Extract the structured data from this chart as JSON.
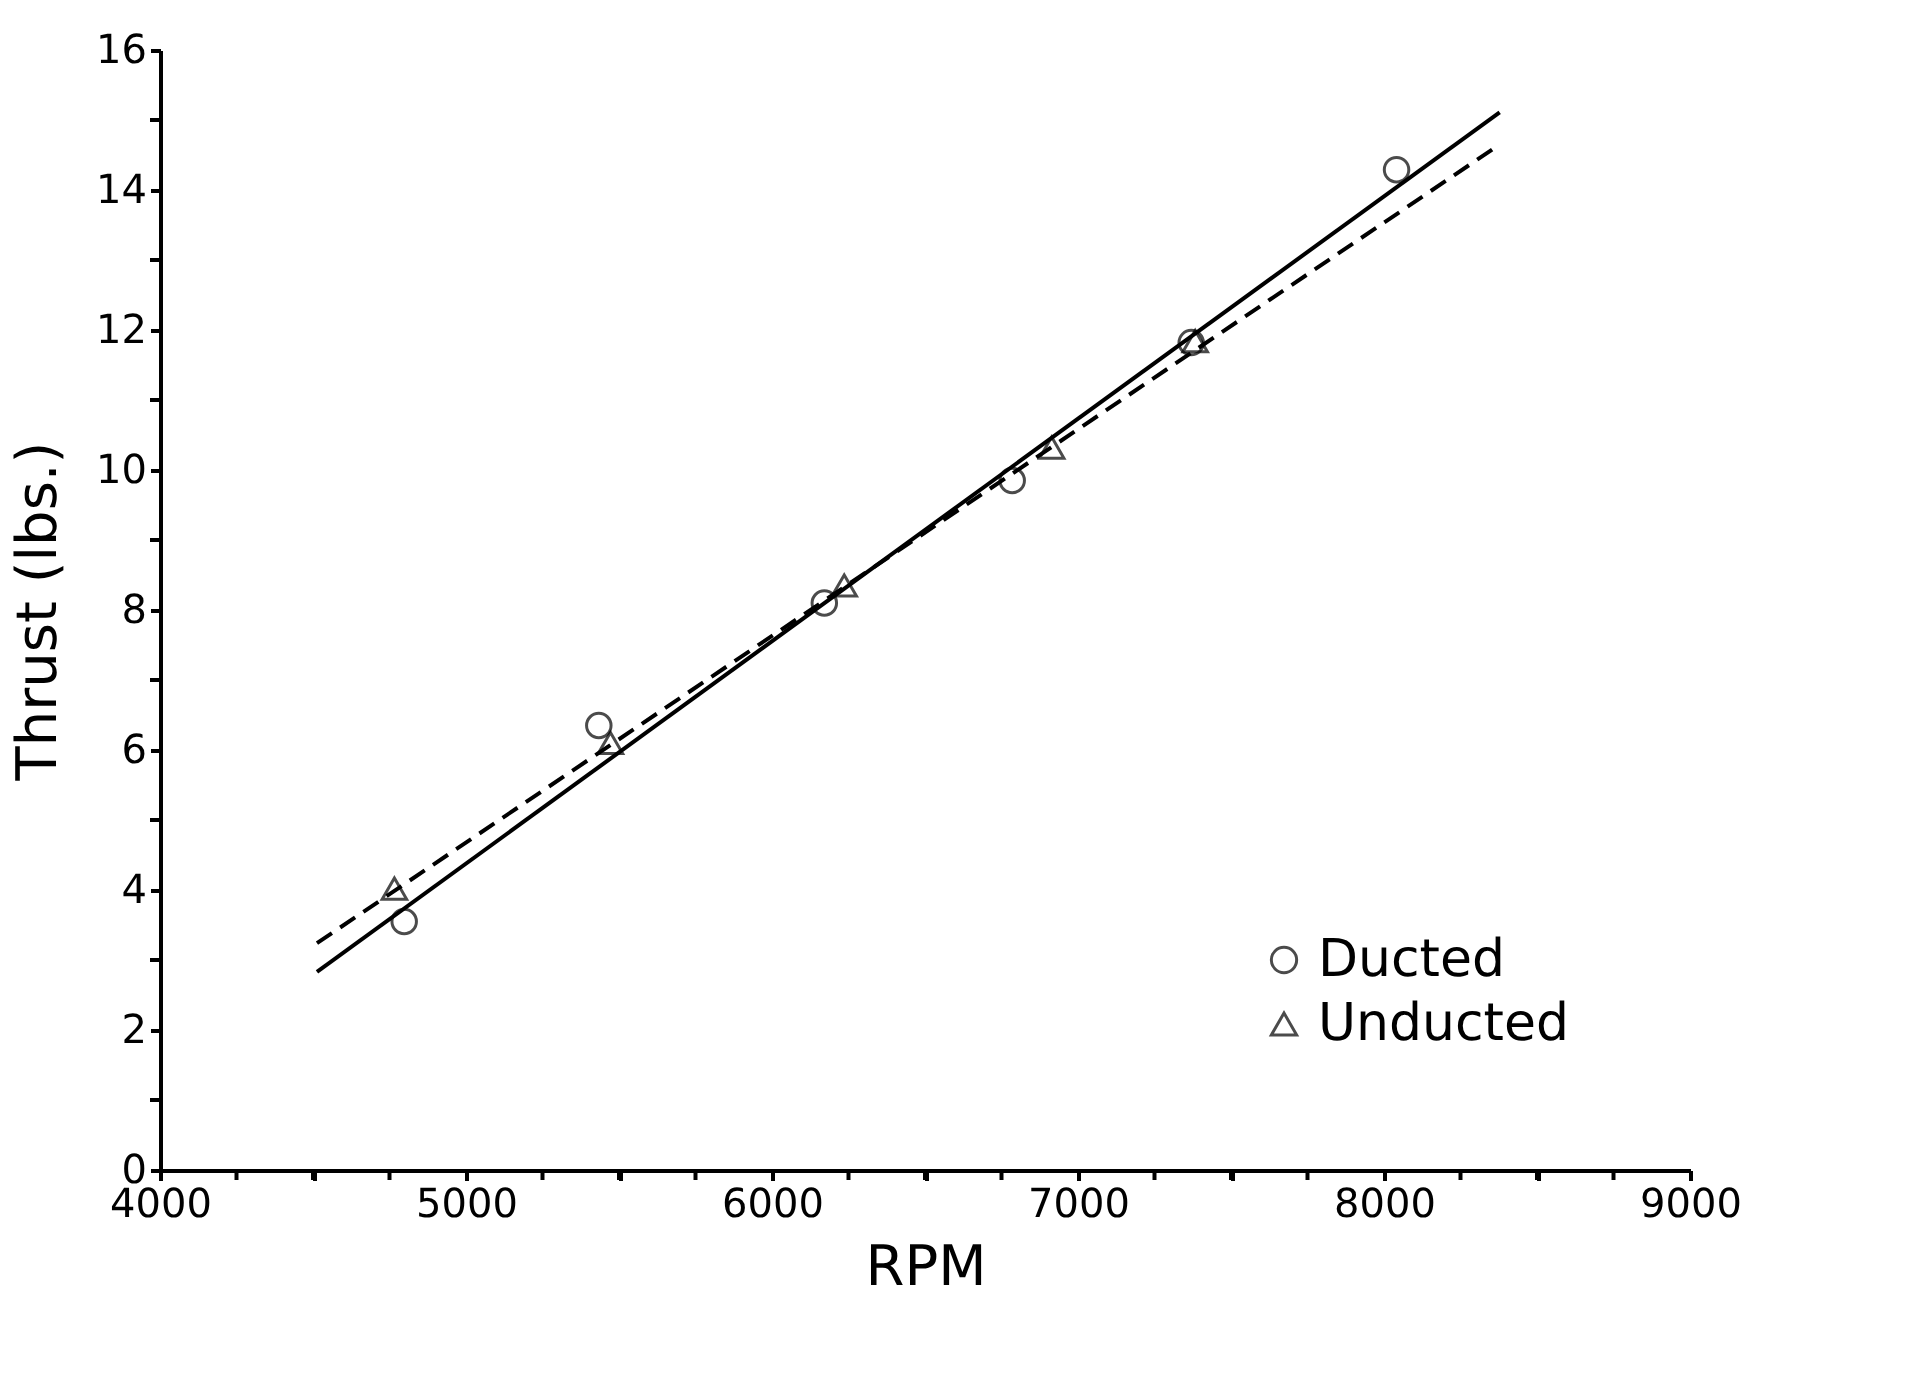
{
  "chart_data": {
    "type": "scatter",
    "xlabel": "RPM",
    "ylabel": "Thrust (lbs.)",
    "xlim": [
      4000,
      9000
    ],
    "ylim": [
      0,
      16
    ],
    "xticks": [
      4000,
      {
        "value": 4250,
        "label": null
      },
      {
        "value": 4500,
        "label": null
      },
      {
        "value": 4750,
        "label": null
      },
      5000,
      {
        "value": 5250,
        "label": null
      },
      {
        "value": 5500,
        "label": null
      },
      {
        "value": 5750,
        "label": null
      },
      6000,
      {
        "value": 6250,
        "label": null
      },
      {
        "value": 6500,
        "label": null
      },
      {
        "value": 6750,
        "label": null
      },
      7000,
      {
        "value": 7250,
        "label": null
      },
      {
        "value": 7500,
        "label": null
      },
      {
        "value": 7750,
        "label": null
      },
      8000,
      {
        "value": 8250,
        "label": null
      },
      {
        "value": 8500,
        "label": null
      },
      {
        "value": 8750,
        "label": null
      },
      9000
    ],
    "yticks": [
      0,
      {
        "value": 1,
        "label": null
      },
      2,
      {
        "value": 3,
        "label": null
      },
      4,
      {
        "value": 5,
        "label": null
      },
      6,
      {
        "value": 7,
        "label": null
      },
      8,
      {
        "value": 9,
        "label": null
      },
      10,
      {
        "value": 11,
        "label": null
      },
      12,
      {
        "value": 13,
        "label": null
      },
      14,
      {
        "value": 15,
        "label": null
      },
      16
    ],
    "grid": false,
    "legend": "bottom right",
    "series": [
      {
        "name": "Ducted",
        "marker": "circle",
        "color": "#000000",
        "x": [
          4798,
          5434,
          6171,
          6785,
          7370,
          8041
        ],
        "values": [
          3.55,
          6.35,
          8.1,
          9.85,
          11.82,
          14.29
        ]
      },
      {
        "name": "Unducted",
        "marker": "triangle",
        "color": "#000000",
        "x": [
          4766,
          5472,
          6236,
          6914,
          7383
        ],
        "values": [
          4.02,
          6.1,
          8.35,
          10.32,
          11.84
        ]
      },
      {
        "type": "line",
        "line_style": "solid",
        "color": "#000000",
        "x": [
          4513,
          8378
        ],
        "values": [
          2.83,
          15.11
        ]
      },
      {
        "type": "line",
        "line_style": "dashed",
        "color": "#000000",
        "x": [
          4513,
          8378
        ],
        "values": [
          3.24,
          14.65
        ]
      }
    ]
  }
}
